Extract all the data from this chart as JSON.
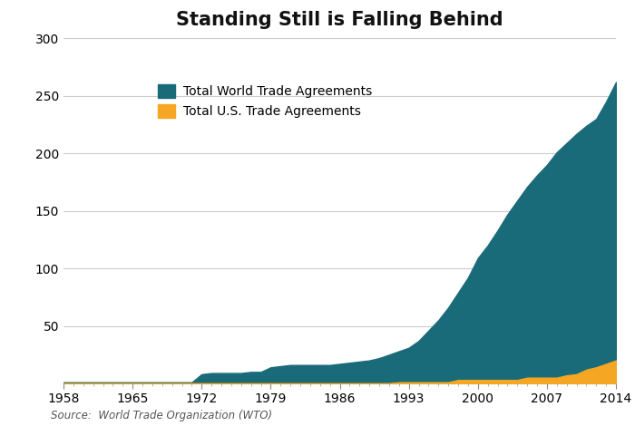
{
  "title": "Standing Still is Falling Behind",
  "source_text": "Source:  World Trade Organization (WTO)",
  "world_color": "#1a6b7a",
  "us_color": "#f5a623",
  "background_color": "#ffffff",
  "grid_color": "#cccccc",
  "years": [
    1958,
    1959,
    1960,
    1961,
    1962,
    1963,
    1964,
    1965,
    1966,
    1967,
    1968,
    1969,
    1970,
    1971,
    1972,
    1973,
    1974,
    1975,
    1976,
    1977,
    1978,
    1979,
    1980,
    1981,
    1982,
    1983,
    1984,
    1985,
    1986,
    1987,
    1988,
    1989,
    1990,
    1991,
    1992,
    1993,
    1994,
    1995,
    1996,
    1997,
    1998,
    1999,
    2000,
    2001,
    2002,
    2003,
    2004,
    2005,
    2006,
    2007,
    2008,
    2009,
    2010,
    2011,
    2012,
    2013,
    2014
  ],
  "world_agreements": [
    1,
    1,
    1,
    1,
    1,
    1,
    1,
    1,
    1,
    1,
    1,
    1,
    1,
    1,
    8,
    9,
    9,
    9,
    9,
    10,
    10,
    14,
    15,
    16,
    16,
    16,
    16,
    16,
    17,
    18,
    19,
    20,
    22,
    25,
    28,
    31,
    37,
    46,
    55,
    66,
    79,
    92,
    109,
    120,
    133,
    147,
    159,
    171,
    181,
    190,
    201,
    209,
    217,
    224,
    230,
    245,
    262
  ],
  "us_agreements": [
    0,
    0,
    0,
    0,
    0,
    0,
    0,
    0,
    0,
    0,
    0,
    0,
    0,
    0,
    0,
    0,
    0,
    0,
    0,
    0,
    0,
    0,
    0,
    0,
    0,
    0,
    0,
    0,
    0,
    0,
    0,
    0,
    0,
    0,
    1,
    1,
    1,
    1,
    1,
    1,
    3,
    3,
    3,
    3,
    3,
    3,
    3,
    5,
    5,
    5,
    5,
    7,
    8,
    12,
    14,
    17,
    20
  ],
  "ylim": [
    0,
    300
  ],
  "yticks": [
    50,
    100,
    150,
    200,
    250,
    300
  ],
  "xticks": [
    1958,
    1965,
    1972,
    1979,
    1986,
    1993,
    2000,
    2007,
    2014
  ],
  "legend_world": "Total World Trade Agreements",
  "legend_us": "Total U.S. Trade Agreements",
  "title_fontsize": 15,
  "label_fontsize": 10,
  "tick_fontsize": 10,
  "source_fontsize": 8.5
}
